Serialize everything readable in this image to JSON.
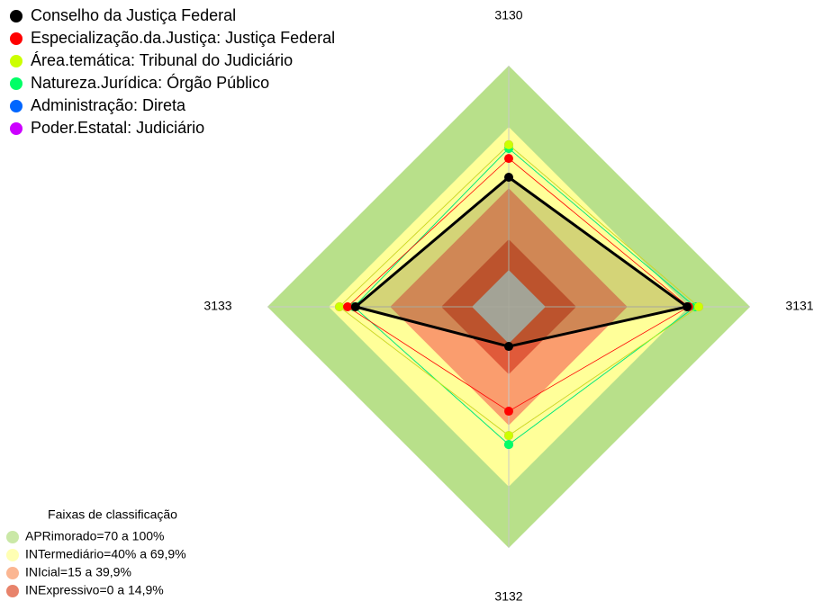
{
  "chart_data": {
    "type": "radar",
    "categories": [
      "3130",
      "3131",
      "3132",
      "3133"
    ],
    "rlim": [
      -18,
      100
    ],
    "series": [
      {
        "name": "Conselho da Justiça Federal",
        "color": "#000000",
        "values": [
          45.4,
          69.2,
          1.4,
          56.9
        ]
      },
      {
        "name": "Especialização.da.Justiça: Justiça Federal",
        "color": "#ff0000",
        "values": [
          54.6,
          70,
          33.1,
          60.8
        ]
      },
      {
        "name": "Área.temática: Tribunal do Judiciário",
        "color": "#ccff00",
        "values": [
          61.3,
          74.9,
          45,
          64.8
        ]
      },
      {
        "name": "Natureza.Jurídica: Órgão Público",
        "color": "#00ff66",
        "values": [
          59.5,
          73.1,
          49.4,
          57.7
        ]
      },
      {
        "name": "Administração: Direta",
        "color": "#0066ff",
        "values": [
          59.5,
          73.1,
          49.4,
          57.7
        ]
      },
      {
        "name": "Poder.Estatal: Judiciário",
        "color": "#cc00ff",
        "values": [
          61.3,
          74.9,
          45,
          64.8
        ]
      }
    ],
    "bands_title": "Faixas de classificação",
    "bands": [
      {
        "label": "APRimorado=70 a 100%",
        "from": 70,
        "to": 100,
        "color": "#b8e08a"
      },
      {
        "label": "INTermediário=40% a 69,9%",
        "from": 40,
        "to": 70,
        "color": "#ffff99"
      },
      {
        "label": "INIcial=15 a 39,9%",
        "from": 15,
        "to": 40,
        "color": "#fa9d6e"
      },
      {
        "label": "INExpressivo=0 a 14,9%",
        "from": 0,
        "to": 15,
        "color": "#e05a3a"
      }
    ],
    "center_color": "#c0c0c0"
  }
}
